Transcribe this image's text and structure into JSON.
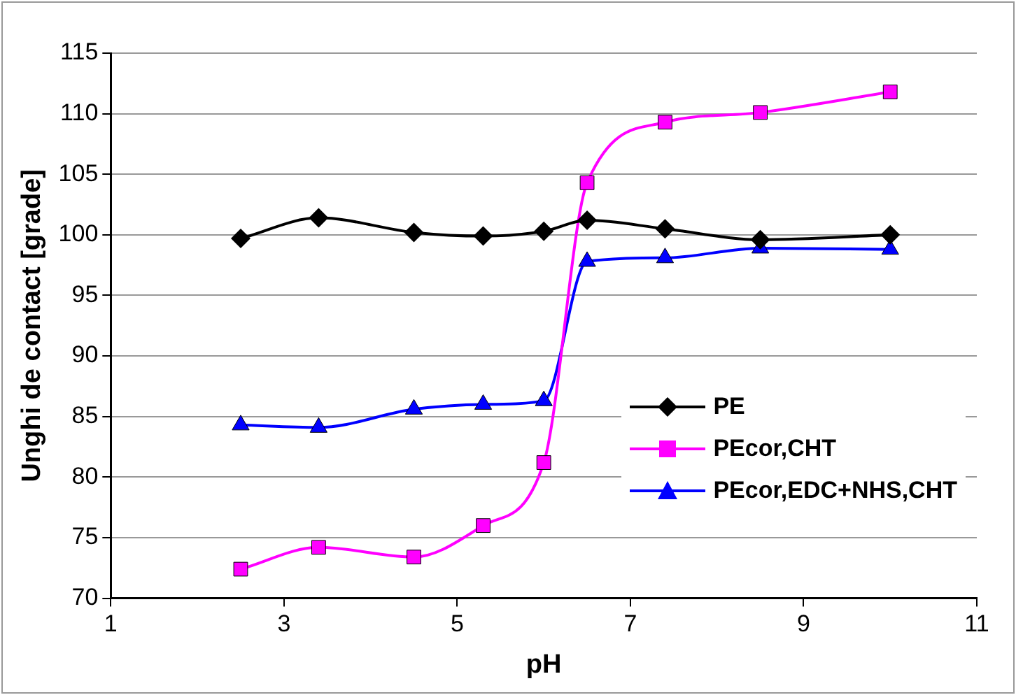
{
  "chart_data": {
    "type": "line",
    "xlabel": "pH",
    "ylabel": "Unghi de contact [grade]",
    "x": [
      2.5,
      3.4,
      4.5,
      5.3,
      6.0,
      6.5,
      7.4,
      8.5,
      10
    ],
    "xlim": [
      1,
      11
    ],
    "xticks": [
      1,
      3,
      5,
      7,
      9,
      11
    ],
    "ylim": [
      70,
      115
    ],
    "yticks": [
      70,
      75,
      80,
      85,
      90,
      95,
      100,
      105,
      110,
      115
    ],
    "grid": "y",
    "legend": "right",
    "line_style": "solid",
    "series": [
      {
        "name": "PE",
        "color": "#000000",
        "marker": "diamond",
        "values": [
          99.7,
          101.4,
          100.2,
          99.9,
          100.3,
          101.2,
          100.5,
          99.6,
          100.0
        ]
      },
      {
        "name": "PEcor,CHT",
        "color": "#ff00ff",
        "marker": "square",
        "values": [
          72.4,
          74.2,
          73.4,
          76.0,
          81.2,
          104.3,
          109.3,
          110.1,
          111.8
        ]
      },
      {
        "name": "PEcor,EDC+NHS,CHT",
        "color": "#0000ff",
        "marker": "triangle",
        "values": [
          84.3,
          84.1,
          85.6,
          86.0,
          86.3,
          97.8,
          98.1,
          98.9,
          98.8
        ]
      }
    ]
  }
}
